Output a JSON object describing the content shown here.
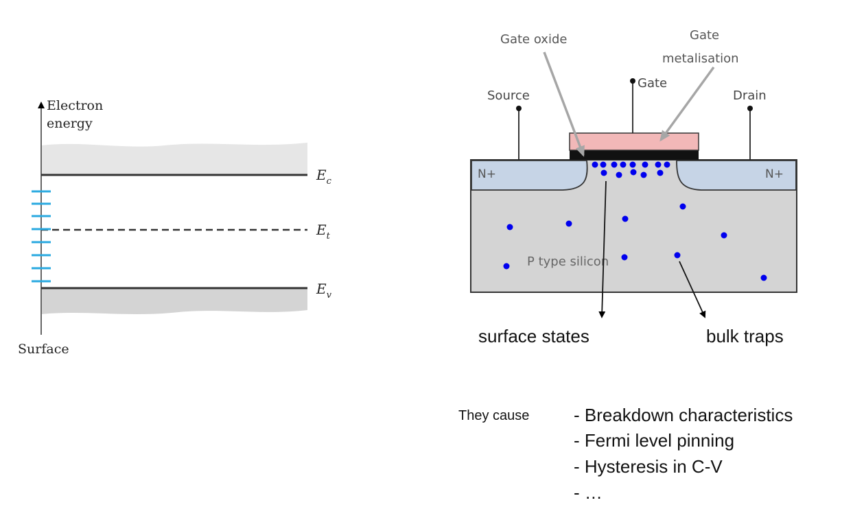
{
  "band_diagram": {
    "axis_label_line1": "Electron",
    "axis_label_line2": "energy",
    "surface_label": "Surface",
    "ec_label": "E",
    "ec_sub": "c",
    "et_label": "E",
    "et_sub": "t",
    "ev_label": "E",
    "ev_sub": "v",
    "surface_state_color": "#29a9e0"
  },
  "mosfet": {
    "gate_oxide_label": "Gate oxide",
    "gate_metal_line1": "Gate",
    "gate_metal_line2": "metalisation",
    "gate_label": "Gate",
    "source_label": "Source",
    "drain_label": "Drain",
    "n_plus_left": "N+",
    "n_plus_right": "N+",
    "substrate_label": "P type silicon",
    "surface_states_label": "surface states",
    "bulk_traps_label": "bulk traps",
    "trap_color": "#0000ee",
    "metal_color": "#f2b8b8",
    "n_region_color": "#c6d4e6",
    "substrate_color": "#d4d4d4"
  },
  "effects": {
    "lead": "They cause",
    "items": [
      "- Breakdown characteristics",
      "- Fermi level pinning",
      "- Hysteresis in C-V",
      "- …"
    ]
  }
}
